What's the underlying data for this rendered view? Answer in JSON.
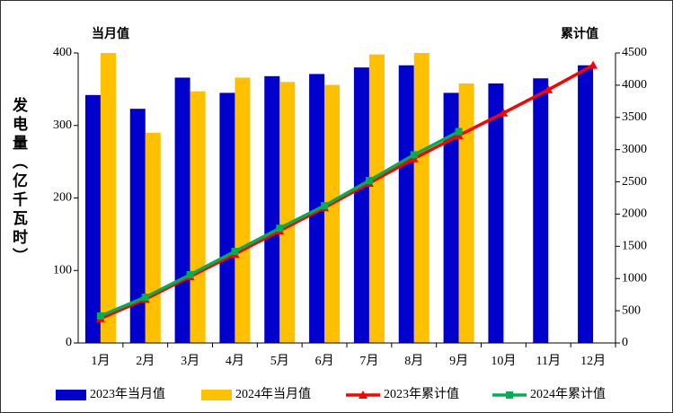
{
  "chart_data": {
    "type": "bar",
    "y_title": "发电量（亿千瓦时）",
    "y_axis_label": "当月值",
    "y2_axis_label": "累计值",
    "categories": [
      "1月",
      "2月",
      "3月",
      "4月",
      "5月",
      "6月",
      "7月",
      "8月",
      "9月",
      "10月",
      "11月",
      "12月"
    ],
    "series": [
      {
        "name": "2023年当月值",
        "type": "bar",
        "color": "#0000cc",
        "values": [
          342,
          323,
          366,
          345,
          368,
          371,
          380,
          383,
          345,
          358,
          365,
          383
        ]
      },
      {
        "name": "2024年当月值",
        "type": "bar",
        "color": "#ffc000",
        "values": [
          400,
          290,
          347,
          366,
          360,
          356,
          398,
          400,
          358,
          null,
          null,
          null
        ]
      },
      {
        "name": "2023年累计值",
        "type": "line",
        "marker": "triangle",
        "axis": "y2",
        "color": "#ff0000",
        "values": [
          380,
          680,
          1030,
          1380,
          1740,
          2100,
          2480,
          2860,
          3220,
          3570,
          3930,
          4310
        ]
      },
      {
        "name": "2024年累计值",
        "type": "line",
        "marker": "square",
        "axis": "y2",
        "color": "#00b050",
        "values": [
          420,
          710,
          1060,
          1420,
          1780,
          2130,
          2520,
          2920,
          3280,
          null,
          null,
          null
        ]
      }
    ],
    "ylim": [
      0,
      400
    ],
    "yticks": [
      0,
      100,
      200,
      300,
      400
    ],
    "y2lim": [
      0,
      4500
    ],
    "y2ticks": [
      0,
      500,
      1000,
      1500,
      2000,
      2500,
      3000,
      3500,
      4000,
      4500
    ],
    "legend": "bottom"
  }
}
